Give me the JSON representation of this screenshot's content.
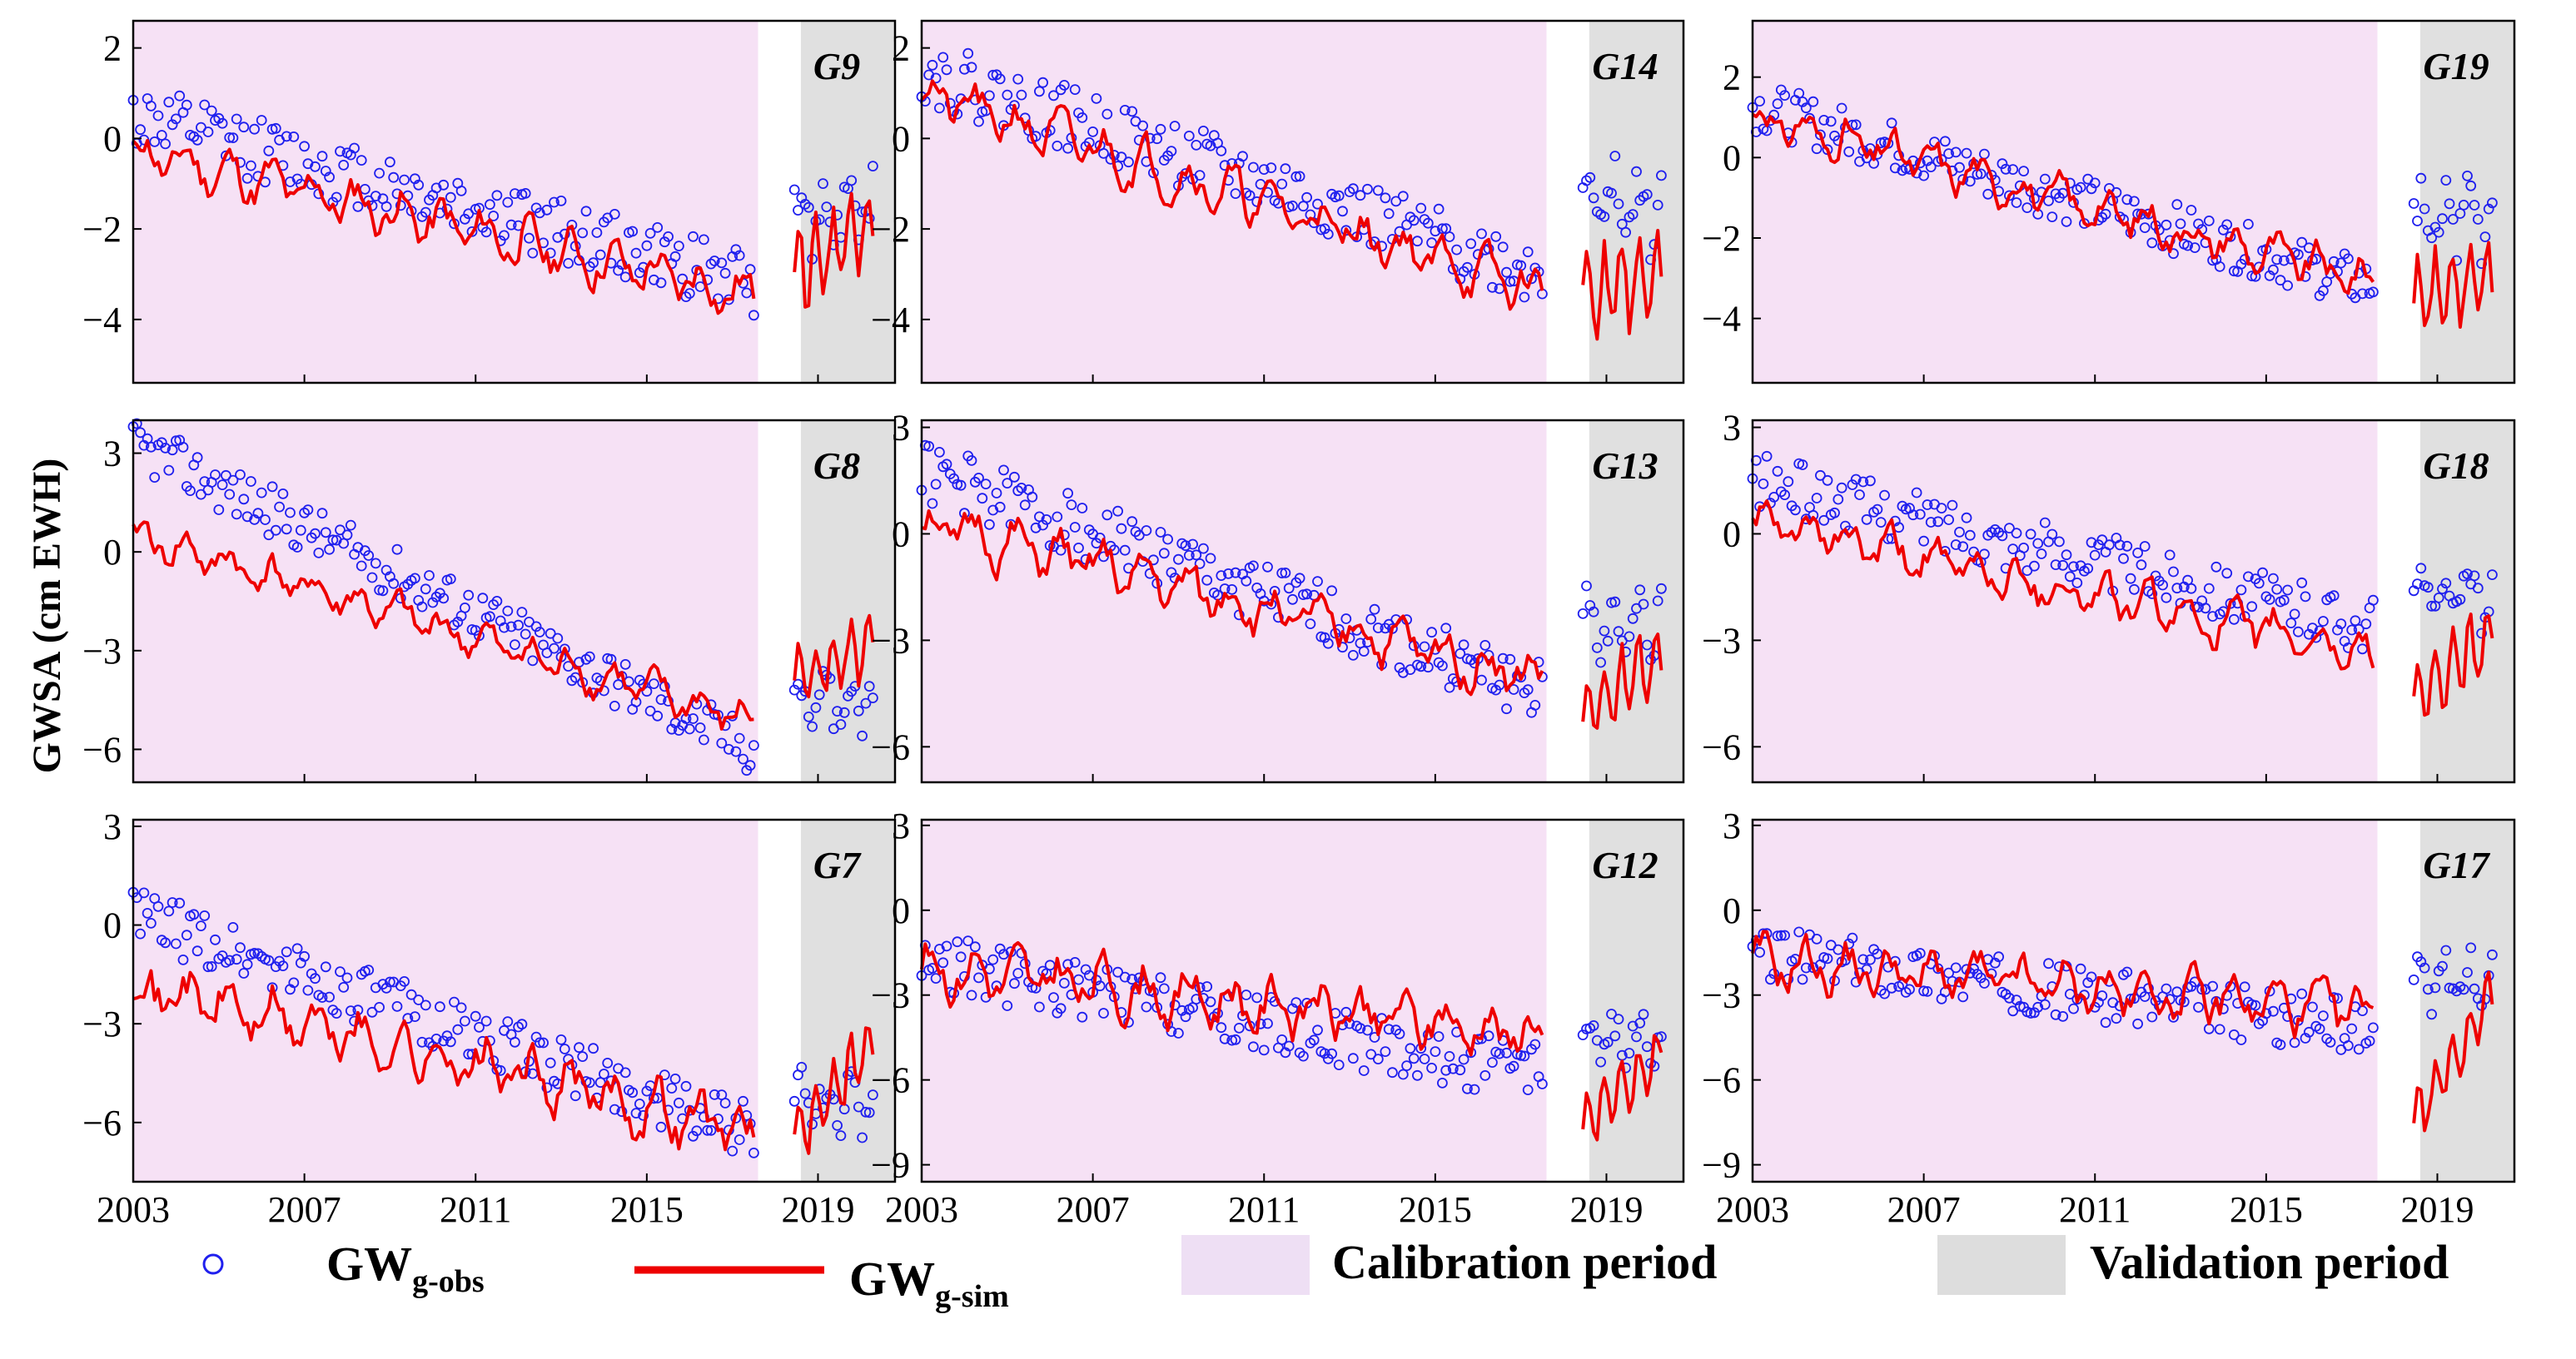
{
  "figure": {
    "ylabel": "GWSA (cm EWH)",
    "xticks": [
      "2003",
      "2007",
      "2011",
      "2015",
      "2019"
    ],
    "colors": {
      "calibration": "#f6e1f5",
      "validation": "#e0e0e0",
      "sim": "#ee0000",
      "obs": "#2020ee",
      "frame": "#000000"
    }
  },
  "legend": {
    "obs": {
      "main": "GW",
      "sub": "g-obs"
    },
    "sim": {
      "main": "GW",
      "sub": "g-sim"
    },
    "calibration_label": "Calibration period",
    "validation_label": "Validation period"
  },
  "chart_data": [
    {
      "type": "line",
      "title": "G9",
      "x_range": [
        2003,
        2020.8
      ],
      "ylim": [
        -5.4,
        2.6
      ],
      "yticks": [
        2,
        0,
        -2,
        -4
      ],
      "yticklabels": [
        "2",
        "0",
        "−2",
        "−4"
      ],
      "calibration": [
        2003,
        2017.6
      ],
      "validation": [
        2018.6,
        2020.8
      ],
      "series": [
        {
          "name": "GW g-sim",
          "start": -0.3,
          "end": -3.5,
          "seed": 11,
          "amp": 0.6
        },
        {
          "name": "GW g-obs",
          "start": 0.5,
          "end": -3.2,
          "seed": 12,
          "amp": 0.9
        }
      ],
      "validation_series": {
        "sim_start": -3.0,
        "sim_end": -1.8,
        "obs_level": -1.6,
        "seed": 13
      }
    },
    {
      "type": "line",
      "title": "G14",
      "x_range": [
        2003,
        2020.8
      ],
      "ylim": [
        -5.4,
        2.6
      ],
      "yticks": [
        2,
        0,
        -2,
        -4
      ],
      "yticklabels": [
        "2",
        "0",
        "−2",
        "−4"
      ],
      "calibration": [
        2003,
        2017.6
      ],
      "validation": [
        2018.6,
        2020.8
      ],
      "series": [
        {
          "name": "GW g-sim",
          "start": 1.0,
          "end": -3.4,
          "seed": 21,
          "amp": 0.6
        },
        {
          "name": "GW g-obs",
          "start": 1.5,
          "end": -3.0,
          "seed": 22,
          "amp": 0.9
        }
      ],
      "validation_series": {
        "sim_start": -3.5,
        "sim_end": -3.0,
        "obs_level": -1.5,
        "seed": 23
      }
    },
    {
      "type": "line",
      "title": "G19",
      "x_range": [
        2003,
        2020.8
      ],
      "ylim": [
        -5.6,
        3.4
      ],
      "yticks": [
        2,
        0,
        -2,
        -4
      ],
      "yticklabels": [
        "2",
        "0",
        "−2",
        "−4"
      ],
      "calibration": [
        2003,
        2017.6
      ],
      "validation": [
        2018.6,
        2020.8
      ],
      "series": [
        {
          "name": "GW g-sim",
          "start": 1.0,
          "end": -3.1,
          "seed": 31,
          "amp": 0.6
        },
        {
          "name": "GW g-obs",
          "start": 1.3,
          "end": -3.2,
          "seed": 32,
          "amp": 0.8
        }
      ],
      "validation_series": {
        "sim_start": -3.5,
        "sim_end": -3.0,
        "obs_level": -1.5,
        "seed": 33
      }
    },
    {
      "type": "line",
      "title": "G8",
      "x_range": [
        2003,
        2020.8
      ],
      "ylim": [
        -7.0,
        4.0
      ],
      "yticks": [
        3,
        0,
        -3,
        -6
      ],
      "yticklabels": [
        "3",
        "0",
        "−3",
        "−6"
      ],
      "calibration": [
        2003,
        2017.6
      ],
      "validation": [
        2018.6,
        2020.8
      ],
      "series": [
        {
          "name": "GW g-sim",
          "start": 0.5,
          "end": -5.2,
          "seed": 41,
          "amp": 0.7
        },
        {
          "name": "GW g-obs",
          "start": 3.3,
          "end": -6.0,
          "seed": 42,
          "amp": 1.0
        }
      ],
      "validation_series": {
        "sim_start": -4.0,
        "sim_end": -2.7,
        "obs_level": -4.5,
        "seed": 43
      }
    },
    {
      "type": "line",
      "title": "G13",
      "x_range": [
        2003,
        2020.8
      ],
      "ylim": [
        -7.0,
        3.2
      ],
      "yticks": [
        3,
        0,
        -3,
        -6
      ],
      "yticklabels": [
        "3",
        "0",
        "−3",
        "−6"
      ],
      "calibration": [
        2003,
        2017.6
      ],
      "validation": [
        2018.6,
        2020.8
      ],
      "series": [
        {
          "name": "GW g-sim",
          "start": 0.3,
          "end": -4.1,
          "seed": 51,
          "amp": 0.8
        },
        {
          "name": "GW g-obs",
          "start": 1.8,
          "end": -4.5,
          "seed": 52,
          "amp": 1.1
        }
      ],
      "validation_series": {
        "sim_start": -5.0,
        "sim_end": -3.5,
        "obs_level": -2.5,
        "seed": 53
      }
    },
    {
      "type": "line",
      "title": "G18",
      "x_range": [
        2003,
        2020.8
      ],
      "ylim": [
        -7.0,
        3.2
      ],
      "yticks": [
        3,
        0,
        -3,
        -6
      ],
      "yticklabels": [
        "3",
        "0",
        "−3",
        "−6"
      ],
      "calibration": [
        2003,
        2017.6
      ],
      "validation": [
        2018.6,
        2020.8
      ],
      "series": [
        {
          "name": "GW g-sim",
          "start": 0.3,
          "end": -3.4,
          "seed": 61,
          "amp": 0.7
        },
        {
          "name": "GW g-obs",
          "start": 1.5,
          "end": -2.6,
          "seed": 62,
          "amp": 1.0
        }
      ],
      "validation_series": {
        "sim_start": -4.5,
        "sim_end": -2.9,
        "obs_level": -1.8,
        "seed": 63
      }
    },
    {
      "type": "line",
      "title": "G7",
      "x_range": [
        2003,
        2020.8
      ],
      "ylim": [
        -7.8,
        3.2
      ],
      "yticks": [
        3,
        0,
        -3,
        -6
      ],
      "yticklabels": [
        "3",
        "0",
        "−3",
        "−6"
      ],
      "calibration": [
        2003,
        2017.6
      ],
      "validation": [
        2018.6,
        2020.8
      ],
      "series": [
        {
          "name": "GW g-sim",
          "start": -1.8,
          "end": -6.3,
          "seed": 71,
          "amp": 1.0
        },
        {
          "name": "GW g-obs",
          "start": 0.3,
          "end": -6.3,
          "seed": 72,
          "amp": 1.1
        }
      ],
      "validation_series": {
        "sim_start": -6.5,
        "sim_end": -3.6,
        "obs_level": -5.5,
        "seed": 73
      }
    },
    {
      "type": "line",
      "title": "G12",
      "x_range": [
        2003,
        2020.8
      ],
      "ylim": [
        -9.6,
        3.2
      ],
      "yticks": [
        3,
        0,
        -3,
        -6,
        -9
      ],
      "yticklabels": [
        "3",
        "0",
        "−3",
        "−6",
        "−9"
      ],
      "calibration": [
        2003,
        2017.6
      ],
      "validation": [
        2018.6,
        2020.8
      ],
      "series": [
        {
          "name": "GW g-sim",
          "start": -2.0,
          "end": -4.4,
          "seed": 81,
          "amp": 1.1
        },
        {
          "name": "GW g-obs",
          "start": -1.8,
          "end": -5.8,
          "seed": 82,
          "amp": 1.3
        }
      ],
      "validation_series": {
        "sim_start": -7.5,
        "sim_end": -5.0,
        "obs_level": -4.5,
        "seed": 83
      }
    },
    {
      "type": "line",
      "title": "G17",
      "x_range": [
        2003,
        2020.8
      ],
      "ylim": [
        -9.6,
        3.2
      ],
      "yticks": [
        3,
        0,
        -3,
        -6,
        -9
      ],
      "yticklabels": [
        "3",
        "0",
        "−3",
        "−6",
        "−9"
      ],
      "calibration": [
        2003,
        2017.6
      ],
      "validation": [
        2018.6,
        2020.8
      ],
      "series": [
        {
          "name": "GW g-sim",
          "start": -1.8,
          "end": -3.6,
          "seed": 91,
          "amp": 1.0
        },
        {
          "name": "GW g-obs",
          "start": -1.5,
          "end": -4.2,
          "seed": 92,
          "amp": 1.2
        }
      ],
      "validation_series": {
        "sim_start": -7.5,
        "sim_end": -3.0,
        "obs_level": -2.5,
        "seed": 93
      }
    }
  ]
}
